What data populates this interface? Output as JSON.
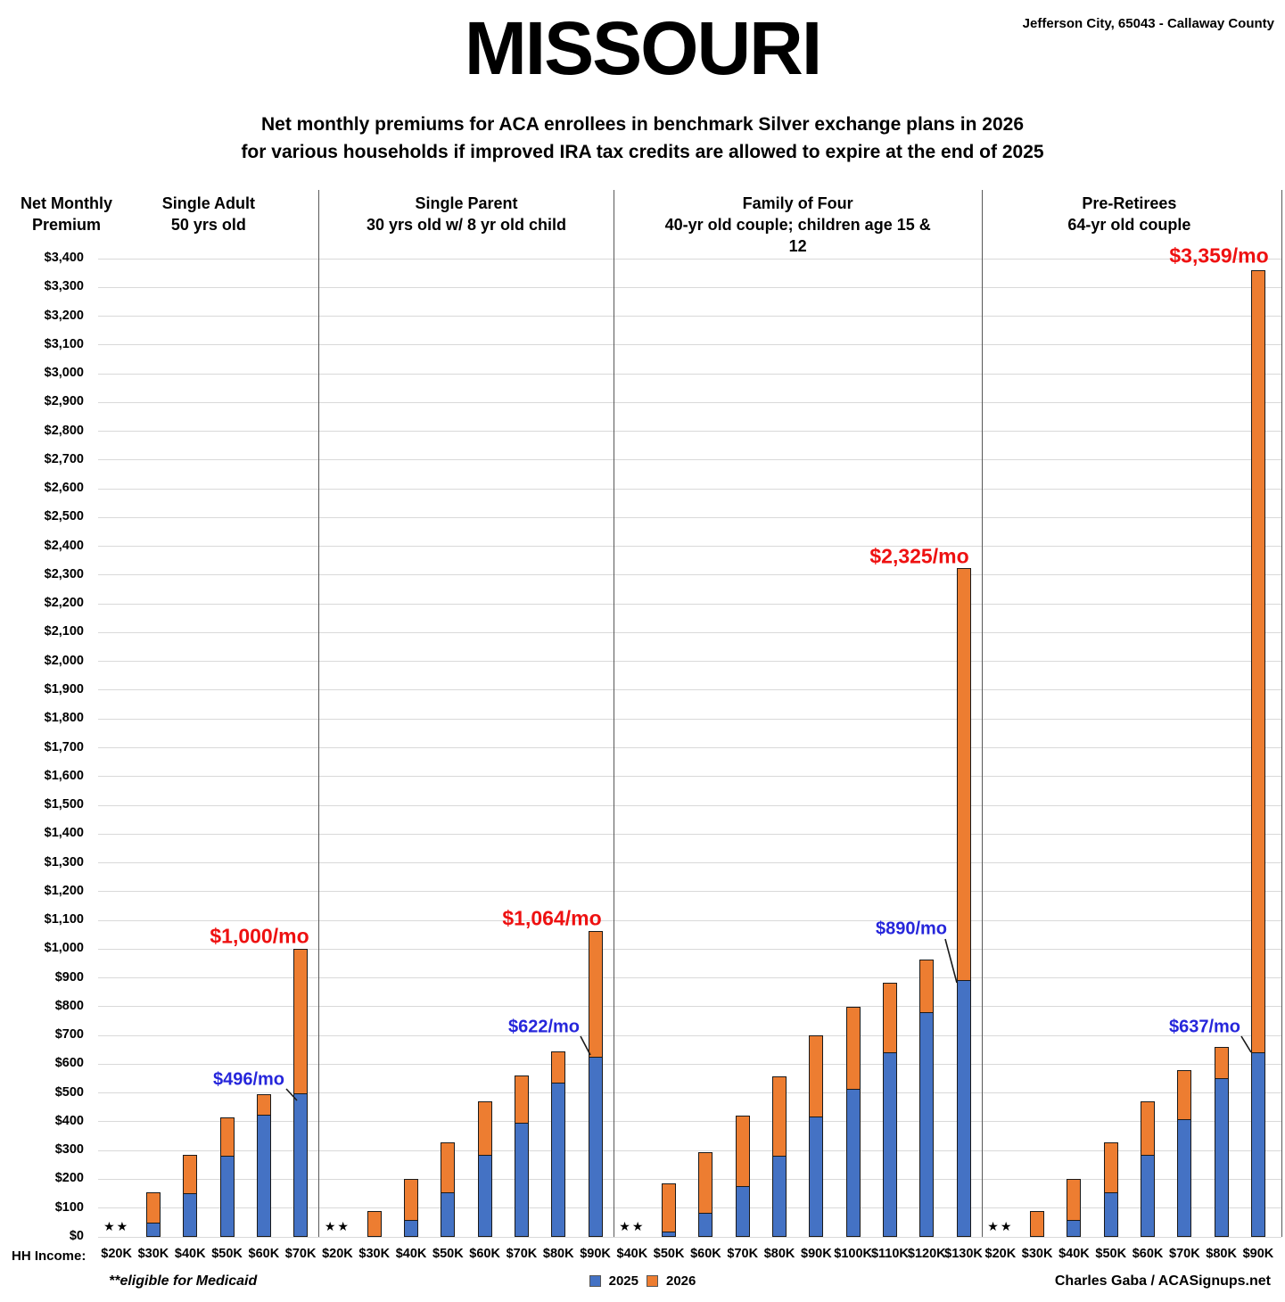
{
  "header": {
    "title": "MISSOURI",
    "location": "Jefferson City, 65043 - Callaway County",
    "subtitle_line1": "Net monthly premiums for ACA enrollees in benchmark Silver exchange plans in 2026",
    "subtitle_line2": "for various households if improved IRA tax credits are allowed to expire at the end of 2025"
  },
  "axis": {
    "y_title_line1": "Net Monthly",
    "y_title_line2": "Premium",
    "x_title": "HH Income:",
    "y_min": 0,
    "y_max": 3400,
    "y_step": 100,
    "y_tick_format": "$#,##0"
  },
  "medicaid_marker": "★★",
  "footnote": {
    "marker": "**",
    "label": "eligible for Medicaid"
  },
  "credit": "Charles Gaba / ACASignups.net",
  "colors": {
    "bar_2025": "#4472C4",
    "bar_2026": "#ED7D31",
    "bar_outline": "#1a1a1a",
    "gridline": "#D9D9D9",
    "divider": "#595959",
    "callout_2025_text": "#2626DB",
    "callout_total_text": "#EE1111"
  },
  "chart_data": {
    "type": "bar",
    "stacked": true,
    "ylim": [
      0,
      3400
    ],
    "y_step": 100,
    "grid": true,
    "legend_position": "bottom-center",
    "series_names": [
      "2025",
      "2026"
    ],
    "note": "v2025 = blue 2025 net premium; total = 2026 stacked total (orange = total - v2025); null = eligible for Medicaid (no bar)",
    "groups": [
      {
        "title": "Single Adult",
        "subtitle": "50 yrs old",
        "categories": [
          "$20K",
          "$30K",
          "$40K",
          "$50K",
          "$60K",
          "$70K"
        ],
        "v2025": [
          null,
          45,
          150,
          278,
          420,
          496
        ],
        "total": [
          null,
          155,
          285,
          415,
          495,
          1000
        ]
      },
      {
        "title": "Single Parent",
        "subtitle": "30 yrs old w/ 8 yr old child",
        "categories": [
          "$20K",
          "$30K",
          "$40K",
          "$50K",
          "$60K",
          "$70K",
          "$80K",
          "$90K"
        ],
        "v2025": [
          null,
          0,
          55,
          152,
          281,
          393,
          533,
          622
        ],
        "total": [
          null,
          90,
          200,
          328,
          472,
          562,
          645,
          1064
        ]
      },
      {
        "title": "Family of Four",
        "subtitle": "40-yr old couple; children age 15 & 12",
        "categories": [
          "$40K",
          "$50K",
          "$60K",
          "$70K",
          "$80K",
          "$90K",
          "$100K",
          "$110K",
          "$120K",
          "$130K"
        ],
        "v2025": [
          null,
          15,
          80,
          173,
          280,
          415,
          510,
          637,
          779,
          890
        ],
        "total": [
          null,
          185,
          295,
          420,
          558,
          700,
          800,
          882,
          965,
          2325
        ]
      },
      {
        "title": "Pre-Retirees",
        "subtitle": "64-yr old couple",
        "categories": [
          "$20K",
          "$30K",
          "$40K",
          "$50K",
          "$60K",
          "$70K",
          "$80K",
          "$90K"
        ],
        "v2025": [
          null,
          0,
          55,
          152,
          281,
          405,
          549,
          637
        ],
        "total": [
          null,
          90,
          200,
          330,
          472,
          580,
          660,
          3359
        ]
      }
    ],
    "callouts": [
      {
        "group": 0,
        "category": "$70K",
        "kind": "2025",
        "text": "$496/mo"
      },
      {
        "group": 0,
        "category": "$70K",
        "kind": "total",
        "text": "$1,000/mo"
      },
      {
        "group": 1,
        "category": "$90K",
        "kind": "2025",
        "text": "$622/mo"
      },
      {
        "group": 1,
        "category": "$90K",
        "kind": "total",
        "text": "$1,064/mo"
      },
      {
        "group": 2,
        "category": "$130K",
        "kind": "2025",
        "text": "$890/mo"
      },
      {
        "group": 2,
        "category": "$130K",
        "kind": "total",
        "text": "$2,325/mo"
      },
      {
        "group": 3,
        "category": "$90K",
        "kind": "2025",
        "text": "$637/mo"
      },
      {
        "group": 3,
        "category": "$90K",
        "kind": "total",
        "text": "$3,359/mo"
      }
    ]
  }
}
